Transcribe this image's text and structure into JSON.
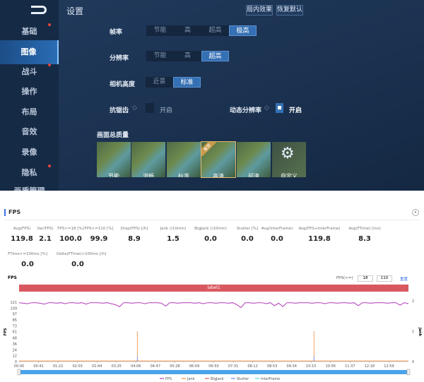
{
  "game": {
    "title": "设置",
    "buttons": [
      "局内效果",
      "恢复默认"
    ],
    "sidebar": [
      {
        "label": "基础",
        "dot": true
      },
      {
        "label": "图像",
        "selected": true
      },
      {
        "label": "战斗",
        "dot": true
      },
      {
        "label": "操作"
      },
      {
        "label": "布局"
      },
      {
        "label": "音效"
      },
      {
        "label": "录像"
      },
      {
        "label": "隐私",
        "dot": true
      },
      {
        "label": "画质管理"
      }
    ],
    "frame_rate": {
      "label": "帧率",
      "options": [
        "节能",
        "高",
        "超高",
        "极高"
      ],
      "selected": 3
    },
    "resolution": {
      "label": "分辨率",
      "options": [
        "节能",
        "高",
        "超高"
      ],
      "selected": 2
    },
    "camera": {
      "label": "相机高度",
      "options": [
        "近景",
        "标准"
      ],
      "selected": 1
    },
    "antialias": {
      "label": "抗锯齿",
      "toggle": "开启",
      "checked": false
    },
    "dynamic_res": {
      "label": "动态分辨率",
      "toggle": "开启",
      "checked": true
    },
    "quality": {
      "label": "画面总质量",
      "presets": [
        "节能",
        "流畅",
        "标准",
        "高清",
        "超清",
        "自定义"
      ],
      "recommended_badge": "推荐",
      "selected": 3
    }
  },
  "fps_panel": {
    "title": "FPS",
    "stats": [
      {
        "k": "Avg(FPS)",
        "v": "119.8"
      },
      {
        "k": "Var(FPS)",
        "v": "2.1"
      },
      {
        "k": "FPS>=18 [%]",
        "v": "100.0"
      },
      {
        "k": "FPS>=110 [%]",
        "v": "99.9"
      },
      {
        "k": "Drop(FPS) [/h]",
        "v": "8.9"
      },
      {
        "k": "Jank (/10min)",
        "v": "1.5"
      },
      {
        "k": "BigJank (/10min)",
        "v": "0.0"
      },
      {
        "k": "Stutter [%]",
        "v": "0.0"
      },
      {
        "k": "Avg(InterFrame)",
        "v": "0.0"
      },
      {
        "k": "Avg(FPS+InterFrame)",
        "v": "119.8"
      },
      {
        "k": "Avg(FTime) [ms]",
        "v": "8.3"
      },
      {
        "k": "FTime>=100ms [%]",
        "v": "0.0"
      },
      {
        "k": "Delta(FTime)>100ms [/h]",
        "v": "0.0"
      }
    ],
    "chart_title": "FPS",
    "threshold_label": "FPS(>=)",
    "threshold_values": [
      "18",
      "110"
    ],
    "reset_link": "重置",
    "label_bar": "label1"
  },
  "chart_data": {
    "type": "line",
    "ylabel": "FPS",
    "y2label": "Jank",
    "yticks": [
      0,
      12,
      24,
      36,
      48,
      61,
      73,
      85,
      97,
      109,
      121
    ],
    "y2ticks": [
      0,
      1,
      2
    ],
    "xticks": [
      "00:00",
      "00:41",
      "01:22",
      "02:03",
      "02:44",
      "03:25",
      "04:06",
      "04:47",
      "05:28",
      "06:09",
      "06:50",
      "07:31",
      "08:12",
      "08:53",
      "09:34",
      "10:15",
      "10:56",
      "11:37",
      "12:18",
      "12:59"
    ],
    "x_range_sec": [
      0,
      820
    ],
    "fps": [
      120,
      119,
      118,
      120,
      120,
      119,
      117,
      120,
      120,
      119,
      120,
      118,
      120,
      120,
      119,
      120,
      117,
      120,
      120,
      120,
      119,
      120,
      118,
      116,
      112,
      120,
      120,
      119,
      120,
      120,
      118,
      120,
      120,
      120,
      119,
      113,
      120,
      120,
      119,
      120,
      120,
      120,
      119,
      120,
      118,
      120,
      120,
      119,
      120,
      120,
      119,
      120,
      116,
      110,
      120,
      120,
      119,
      120,
      120,
      118,
      120,
      114,
      119,
      112,
      120,
      120,
      119,
      120,
      120,
      120,
      119,
      120,
      120,
      118,
      120,
      120,
      119,
      120,
      120,
      119,
      120,
      114,
      120,
      120,
      119,
      120,
      120,
      120,
      119,
      120,
      120,
      115,
      120,
      118
    ],
    "jank": [
      {
        "t": 249,
        "v": 1
      },
      {
        "t": 621,
        "v": 1
      }
    ],
    "legend": [
      "FPS",
      "Jank",
      "BigJank",
      "Stutter",
      "InterFrame"
    ],
    "colors": {
      "FPS": "#b03ab8",
      "Jank": "#f28c3c",
      "BigJank": "#e8504a",
      "Stutter": "#5b8ff0",
      "InterFrame": "#5bd0e8",
      "label": "#d9585f",
      "slider": "#4aa3e8"
    }
  }
}
